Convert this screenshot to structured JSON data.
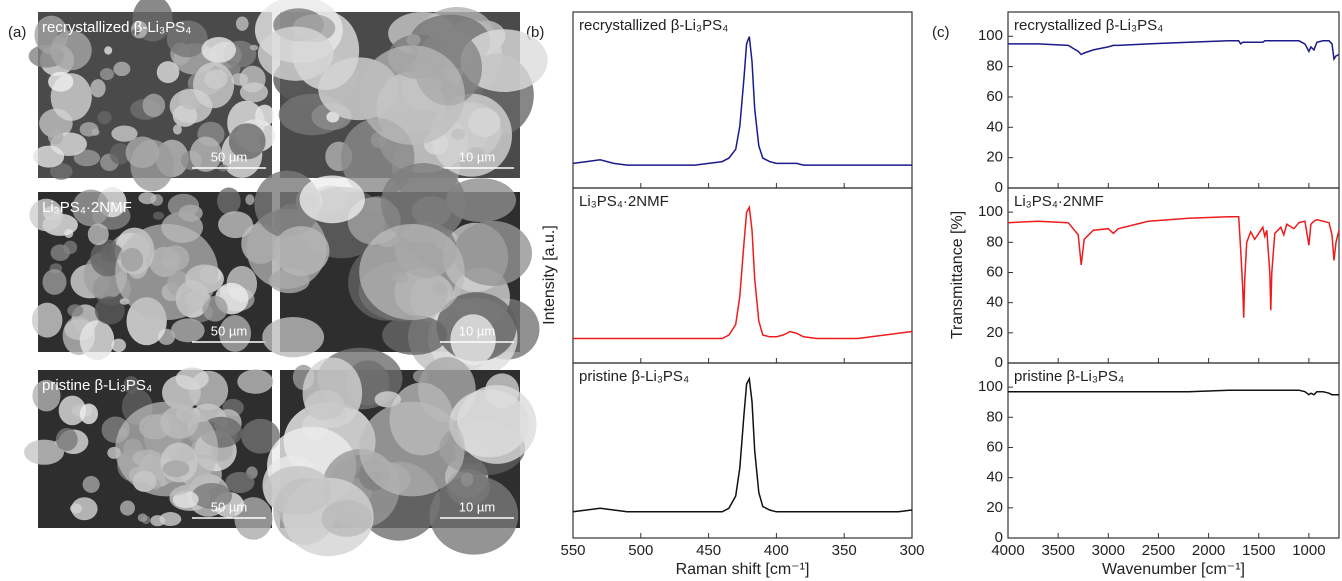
{
  "figure": {
    "panel_labels": [
      "(a)",
      "(b)",
      "(c)"
    ],
    "sem": {
      "labels": [
        "recrystallized β-Li₃PS₄",
        "Li₃PS₄·2NMF",
        "pristine β-Li₃PS₄"
      ],
      "scale_bars": [
        [
          "50 µm",
          "10 µm"
        ],
        [
          "50 µm",
          "10 µm"
        ],
        [
          "50 µm",
          "10 µm"
        ]
      ]
    }
  },
  "chart_data": [
    {
      "type": "line",
      "xlabel": "Raman shift [cm⁻¹]",
      "ylabel": "Intensity [a.u.]",
      "x": [
        550,
        540,
        530,
        520,
        510,
        500,
        490,
        480,
        470,
        460,
        450,
        440,
        435,
        430,
        427,
        424,
        422,
        420,
        418,
        416,
        413,
        410,
        405,
        400,
        395,
        390,
        385,
        380,
        370,
        360,
        350,
        340,
        330,
        320,
        310,
        300
      ],
      "xlim": [
        550,
        300
      ],
      "xticks": [
        550,
        500,
        450,
        400,
        350,
        300
      ],
      "ylim": [
        0,
        100
      ],
      "series": [
        {
          "name": "recrystallized β-Li₃PS₄",
          "color": "#1a1a8c",
          "values": [
            14,
            15,
            16,
            14,
            13,
            13,
            13,
            13,
            13,
            13,
            14,
            15,
            17,
            22,
            35,
            62,
            82,
            86,
            72,
            45,
            24,
            17,
            15,
            14,
            14,
            14,
            14,
            13,
            13,
            13,
            13,
            13,
            13,
            13,
            13,
            13
          ]
        },
        {
          "name": "Li₃PS₄·2NMF",
          "color": "#ee1c1c",
          "values": [
            14,
            14,
            14,
            14,
            14,
            14,
            14,
            14,
            14,
            14,
            14,
            14,
            16,
            22,
            38,
            68,
            86,
            89,
            76,
            48,
            24,
            16,
            15,
            15,
            16,
            18,
            17,
            15,
            14,
            14,
            14,
            14,
            15,
            16,
            17,
            18
          ]
        },
        {
          "name": "pristine β-Li₃PS₄",
          "color": "#111111",
          "values": [
            15,
            16,
            17,
            16,
            15,
            15,
            15,
            15,
            15,
            15,
            15,
            15,
            17,
            24,
            40,
            70,
            88,
            91,
            78,
            50,
            26,
            18,
            16,
            15,
            15,
            15,
            15,
            15,
            15,
            15,
            15,
            15,
            15,
            15,
            15,
            16
          ]
        }
      ]
    },
    {
      "type": "line",
      "xlabel": "Wavenumber [cm⁻¹]",
      "ylabel": "Transmittance [%]",
      "x": [
        4000,
        3700,
        3400,
        3300,
        3270,
        3240,
        3150,
        3000,
        2950,
        2900,
        2600,
        2200,
        1800,
        1700,
        1680,
        1660,
        1650,
        1640,
        1620,
        1580,
        1540,
        1500,
        1460,
        1440,
        1420,
        1390,
        1380,
        1370,
        1340,
        1280,
        1250,
        1220,
        1150,
        1100,
        1040,
        1000,
        980,
        950,
        920,
        860,
        800,
        770,
        750,
        730,
        700
      ],
      "xlim": [
        4000,
        700
      ],
      "xticks": [
        4000,
        3500,
        3000,
        2500,
        2000,
        1500,
        1000
      ],
      "ylim": [
        0,
        116
      ],
      "yticks": [
        0,
        20,
        40,
        60,
        80,
        100
      ],
      "series": [
        {
          "name": "recrystallized β-Li₃PS₄",
          "color": "#1a1a8c",
          "values": [
            95,
            95,
            94,
            90,
            88,
            89,
            91,
            93,
            94,
            94,
            95,
            96,
            97,
            97,
            95,
            96,
            96,
            96,
            96,
            96,
            96,
            96,
            96,
            97,
            97,
            97,
            97,
            97,
            97,
            97,
            97,
            97,
            97,
            97,
            95,
            90,
            93,
            91,
            96,
            97,
            97,
            95,
            85,
            87,
            88
          ]
        },
        {
          "name": "Li₃PS₄·2NMF",
          "color": "#ee1c1c",
          "values": [
            93,
            94,
            93,
            85,
            65,
            82,
            88,
            89,
            86,
            89,
            94,
            96,
            97,
            97,
            75,
            50,
            30,
            55,
            80,
            87,
            82,
            86,
            90,
            84,
            88,
            60,
            35,
            60,
            86,
            90,
            85,
            92,
            89,
            93,
            94,
            78,
            92,
            94,
            95,
            94,
            93,
            85,
            68,
            80,
            88
          ]
        },
        {
          "name": "pristine β-Li₃PS₄",
          "color": "#111111",
          "values": [
            97,
            97,
            97,
            97,
            97,
            97,
            97,
            97,
            97,
            97,
            97,
            97,
            98,
            98,
            98,
            98,
            98,
            98,
            98,
            98,
            98,
            98,
            98,
            98,
            98,
            98,
            98,
            98,
            98,
            98,
            98,
            98,
            98,
            98,
            97,
            95,
            96,
            95,
            97,
            97,
            96,
            95,
            95,
            95,
            95
          ]
        }
      ]
    }
  ]
}
